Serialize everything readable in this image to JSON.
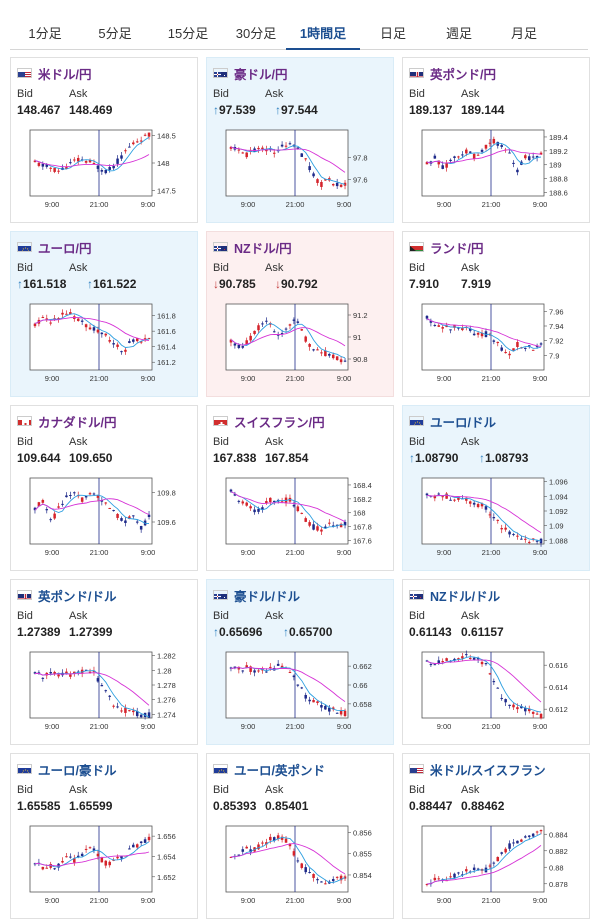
{
  "tabs": [
    {
      "label": "1分足",
      "active": false
    },
    {
      "label": "5分足",
      "active": false
    },
    {
      "label": "15分足",
      "active": false
    },
    {
      "label": "30分足",
      "active": false
    },
    {
      "label": "1時間足",
      "active": true
    },
    {
      "label": "日足",
      "active": false
    },
    {
      "label": "週足",
      "active": false
    },
    {
      "label": "月足",
      "active": false
    }
  ],
  "labels": {
    "bid": "Bid",
    "ask": "Ask"
  },
  "colors": {
    "up_bg": "#eaf5fc",
    "down_bg": "#fdf0f0",
    "candle_up": "#d4232b",
    "candle_down": "#1e2a8a",
    "ma1": "#2d9fe0",
    "ma2": "#d633d6",
    "pair_jpy": "#6b2b86",
    "pair_usd": "#1d4f91"
  },
  "cards": [
    {
      "pair": "米ドル/円",
      "flag": "us-flag-icon",
      "jpy": true,
      "state": "",
      "bid": "148.467",
      "ask": "148.469",
      "dir": "",
      "chart_data": {
        "type": "candlestick",
        "x_ticks": [
          "9:00",
          "21:00",
          "9:00"
        ],
        "y_ticks": [
          "148.5",
          "148",
          "147.5"
        ],
        "ylim": [
          147.4,
          148.6
        ],
        "trend": [
          148.0,
          147.95,
          147.9,
          147.85,
          147.95,
          148.05,
          148.05,
          148.0,
          147.9,
          147.85,
          148.0,
          148.2,
          148.35,
          148.45,
          148.5
        ]
      }
    },
    {
      "pair": "豪ドル/円",
      "flag": "au-flag-icon",
      "jpy": true,
      "state": "up",
      "bid": "97.539",
      "ask": "97.544",
      "dir": "up",
      "chart_data": {
        "type": "candlestick",
        "x_ticks": [
          "9:00",
          "21:00",
          "9:00"
        ],
        "y_ticks": [
          "97.8",
          "97.6"
        ],
        "ylim": [
          97.45,
          98.05
        ],
        "trend": [
          97.9,
          97.85,
          97.82,
          97.88,
          97.9,
          97.85,
          97.88,
          97.95,
          97.9,
          97.8,
          97.65,
          97.55,
          97.6,
          97.55,
          97.55
        ]
      }
    },
    {
      "pair": "英ポンド/円",
      "flag": "gb-flag-icon",
      "jpy": true,
      "state": "",
      "bid": "189.137",
      "ask": "189.144",
      "dir": "",
      "chart_data": {
        "type": "candlestick",
        "x_ticks": [
          "9:00",
          "21:00",
          "9:00"
        ],
        "y_ticks": [
          "189.4",
          "189.2",
          "189",
          "188.8",
          "188.6"
        ],
        "ylim": [
          188.55,
          189.5
        ],
        "trend": [
          189.0,
          189.1,
          188.95,
          189.05,
          189.15,
          189.2,
          189.1,
          189.25,
          189.35,
          189.3,
          189.2,
          188.9,
          189.1,
          189.1,
          189.15
        ]
      }
    },
    {
      "pair": "ユーロ/円",
      "flag": "eu-flag-icon",
      "jpy": true,
      "state": "up",
      "bid": "161.518",
      "ask": "161.522",
      "dir": "up",
      "chart_data": {
        "type": "candlestick",
        "x_ticks": [
          "9:00",
          "21:00",
          "9:00"
        ],
        "y_ticks": [
          "161.8",
          "161.6",
          "161.4",
          "161.2"
        ],
        "ylim": [
          161.1,
          161.95
        ],
        "trend": [
          161.7,
          161.75,
          161.7,
          161.8,
          161.85,
          161.75,
          161.7,
          161.65,
          161.6,
          161.5,
          161.4,
          161.35,
          161.5,
          161.45,
          161.5
        ]
      }
    },
    {
      "pair": "NZドル/円",
      "flag": "nz-flag-icon",
      "jpy": true,
      "state": "down",
      "bid": "90.785",
      "ask": "90.792",
      "dir": "down",
      "chart_data": {
        "type": "candlestick",
        "x_ticks": [
          "9:00",
          "21:00",
          "9:00"
        ],
        "y_ticks": [
          "91.2",
          "91",
          "90.8"
        ],
        "ylim": [
          90.7,
          91.3
        ],
        "trend": [
          90.95,
          90.9,
          90.95,
          91.05,
          91.15,
          91.1,
          91.0,
          91.1,
          91.15,
          91.0,
          90.9,
          90.85,
          90.85,
          90.8,
          90.78
        ]
      }
    },
    {
      "pair": "ランド/円",
      "flag": "za-flag-icon",
      "jpy": true,
      "state": "",
      "bid": "7.910",
      "ask": "7.919",
      "dir": "",
      "chart_data": {
        "type": "candlestick",
        "x_ticks": [
          "9:00",
          "21:00",
          "9:00"
        ],
        "y_ticks": [
          "7.96",
          "7.94",
          "7.92",
          "7.9"
        ],
        "ylim": [
          7.88,
          7.97
        ],
        "trend": [
          7.95,
          7.945,
          7.94,
          7.935,
          7.94,
          7.935,
          7.93,
          7.93,
          7.925,
          7.91,
          7.9,
          7.915,
          7.91,
          7.91,
          7.915
        ]
      }
    },
    {
      "pair": "カナダドル/円",
      "flag": "ca-flag-icon",
      "jpy": true,
      "state": "",
      "bid": "109.644",
      "ask": "109.650",
      "dir": "",
      "chart_data": {
        "type": "candlestick",
        "x_ticks": [
          "9:00",
          "21:00",
          "9:00"
        ],
        "y_ticks": [
          "109.8",
          "109.6"
        ],
        "ylim": [
          109.45,
          109.9
        ],
        "trend": [
          109.7,
          109.75,
          109.6,
          109.7,
          109.8,
          109.78,
          109.75,
          109.8,
          109.75,
          109.7,
          109.65,
          109.6,
          109.65,
          109.55,
          109.64
        ]
      }
    },
    {
      "pair": "スイスフラン/円",
      "flag": "ch-flag-icon",
      "jpy": true,
      "state": "",
      "bid": "167.838",
      "ask": "167.854",
      "dir": "",
      "chart_data": {
        "type": "candlestick",
        "x_ticks": [
          "9:00",
          "21:00",
          "9:00"
        ],
        "y_ticks": [
          "168.4",
          "168.2",
          "168",
          "167.8",
          "167.6"
        ],
        "ylim": [
          167.55,
          168.5
        ],
        "trend": [
          168.3,
          168.2,
          168.1,
          168.0,
          168.1,
          168.2,
          168.15,
          168.2,
          168.1,
          167.9,
          167.8,
          167.75,
          167.85,
          167.8,
          167.84
        ]
      }
    },
    {
      "pair": "ユーロ/ドル",
      "flag": "eu-flag-icon",
      "jpy": false,
      "state": "up",
      "bid": "1.08790",
      "ask": "1.08793",
      "dir": "up",
      "chart_data": {
        "type": "candlestick",
        "x_ticks": [
          "9:00",
          "21:00",
          "9:00"
        ],
        "y_ticks": [
          "1.096",
          "1.094",
          "1.092",
          "1.09",
          "1.088"
        ],
        "ylim": [
          1.0875,
          1.0965
        ],
        "trend": [
          1.0945,
          1.094,
          1.0942,
          1.0938,
          1.0935,
          1.0935,
          1.093,
          1.0925,
          1.0915,
          1.09,
          1.089,
          1.0885,
          1.088,
          1.088,
          1.0879
        ]
      }
    },
    {
      "pair": "英ポンド/ドル",
      "flag": "gb-flag-icon",
      "jpy": false,
      "state": "",
      "bid": "1.27389",
      "ask": "1.27399",
      "dir": "",
      "chart_data": {
        "type": "candlestick",
        "x_ticks": [
          "9:00",
          "21:00",
          "9:00"
        ],
        "y_ticks": [
          "1.282",
          "1.28",
          "1.278",
          "1.276",
          "1.274"
        ],
        "ylim": [
          1.2735,
          1.2825
        ],
        "trend": [
          1.2795,
          1.2792,
          1.2795,
          1.2793,
          1.2795,
          1.2795,
          1.2798,
          1.2802,
          1.278,
          1.2765,
          1.275,
          1.2745,
          1.2742,
          1.274,
          1.2739
        ]
      }
    },
    {
      "pair": "豪ドル/ドル",
      "flag": "au-flag-icon",
      "jpy": false,
      "state": "up",
      "bid": "0.65696",
      "ask": "0.65700",
      "dir": "up",
      "chart_data": {
        "type": "candlestick",
        "x_ticks": [
          "9:00",
          "21:00",
          "9:00"
        ],
        "y_ticks": [
          "0.662",
          "0.66",
          "0.658"
        ],
        "ylim": [
          0.6565,
          0.6635
        ],
        "trend": [
          0.662,
          0.6618,
          0.6618,
          0.6615,
          0.6615,
          0.6617,
          0.662,
          0.6618,
          0.6605,
          0.659,
          0.6582,
          0.6578,
          0.6575,
          0.6572,
          0.657
        ]
      }
    },
    {
      "pair": "NZドル/ドル",
      "flag": "nz-flag-icon",
      "jpy": false,
      "state": "",
      "bid": "0.61143",
      "ask": "0.61157",
      "dir": "",
      "chart_data": {
        "type": "candlestick",
        "x_ticks": [
          "9:00",
          "21:00",
          "9:00"
        ],
        "y_ticks": [
          "0.616",
          "0.614",
          "0.612"
        ],
        "ylim": [
          0.6112,
          0.6172
        ],
        "trend": [
          0.6163,
          0.6162,
          0.6165,
          0.6162,
          0.6165,
          0.6168,
          0.6165,
          0.6163,
          0.6148,
          0.6132,
          0.6125,
          0.6122,
          0.612,
          0.6118,
          0.6114
        ]
      }
    },
    {
      "pair": "ユーロ/豪ドル",
      "flag": "eu-flag-icon",
      "jpy": false,
      "state": "",
      "bid": "1.65585",
      "ask": "1.65599",
      "dir": "",
      "chart_data": {
        "type": "candlestick",
        "x_ticks": [
          "9:00",
          "21:00",
          "9:00"
        ],
        "y_ticks": [
          "1.656",
          "1.654",
          "1.652"
        ],
        "ylim": [
          1.6505,
          1.657
        ],
        "trend": [
          1.6535,
          1.6528,
          1.6532,
          1.653,
          1.654,
          1.6535,
          1.6545,
          1.655,
          1.6538,
          1.6532,
          1.654,
          1.6538,
          1.655,
          1.6552,
          1.6558
        ]
      }
    },
    {
      "pair": "ユーロ/英ポンド",
      "flag": "eu-flag-icon",
      "jpy": false,
      "state": "",
      "bid": "0.85393",
      "ask": "0.85401",
      "dir": "",
      "chart_data": {
        "type": "candlestick",
        "x_ticks": [
          "9:00",
          "21:00",
          "9:00"
        ],
        "y_ticks": [
          "0.856",
          "0.855",
          "0.854"
        ],
        "ylim": [
          0.8532,
          0.8563
        ],
        "trend": [
          0.8548,
          0.855,
          0.8552,
          0.8552,
          0.8555,
          0.8557,
          0.8558,
          0.8556,
          0.8548,
          0.8543,
          0.854,
          0.8538,
          0.8536,
          0.8538,
          0.8539
        ]
      }
    },
    {
      "pair": "米ドル/スイスフラン",
      "flag": "us-flag-icon",
      "jpy": false,
      "state": "",
      "bid": "0.88447",
      "ask": "0.88462",
      "dir": "",
      "chart_data": {
        "type": "candlestick",
        "x_ticks": [
          "9:00",
          "21:00",
          "9:00"
        ],
        "y_ticks": [
          "0.884",
          "0.882",
          "0.88",
          "0.878"
        ],
        "ylim": [
          0.877,
          0.885
        ],
        "trend": [
          0.8782,
          0.8785,
          0.8786,
          0.879,
          0.8792,
          0.8795,
          0.8797,
          0.8795,
          0.88,
          0.8815,
          0.8825,
          0.883,
          0.8835,
          0.884,
          0.8845
        ]
      }
    }
  ]
}
